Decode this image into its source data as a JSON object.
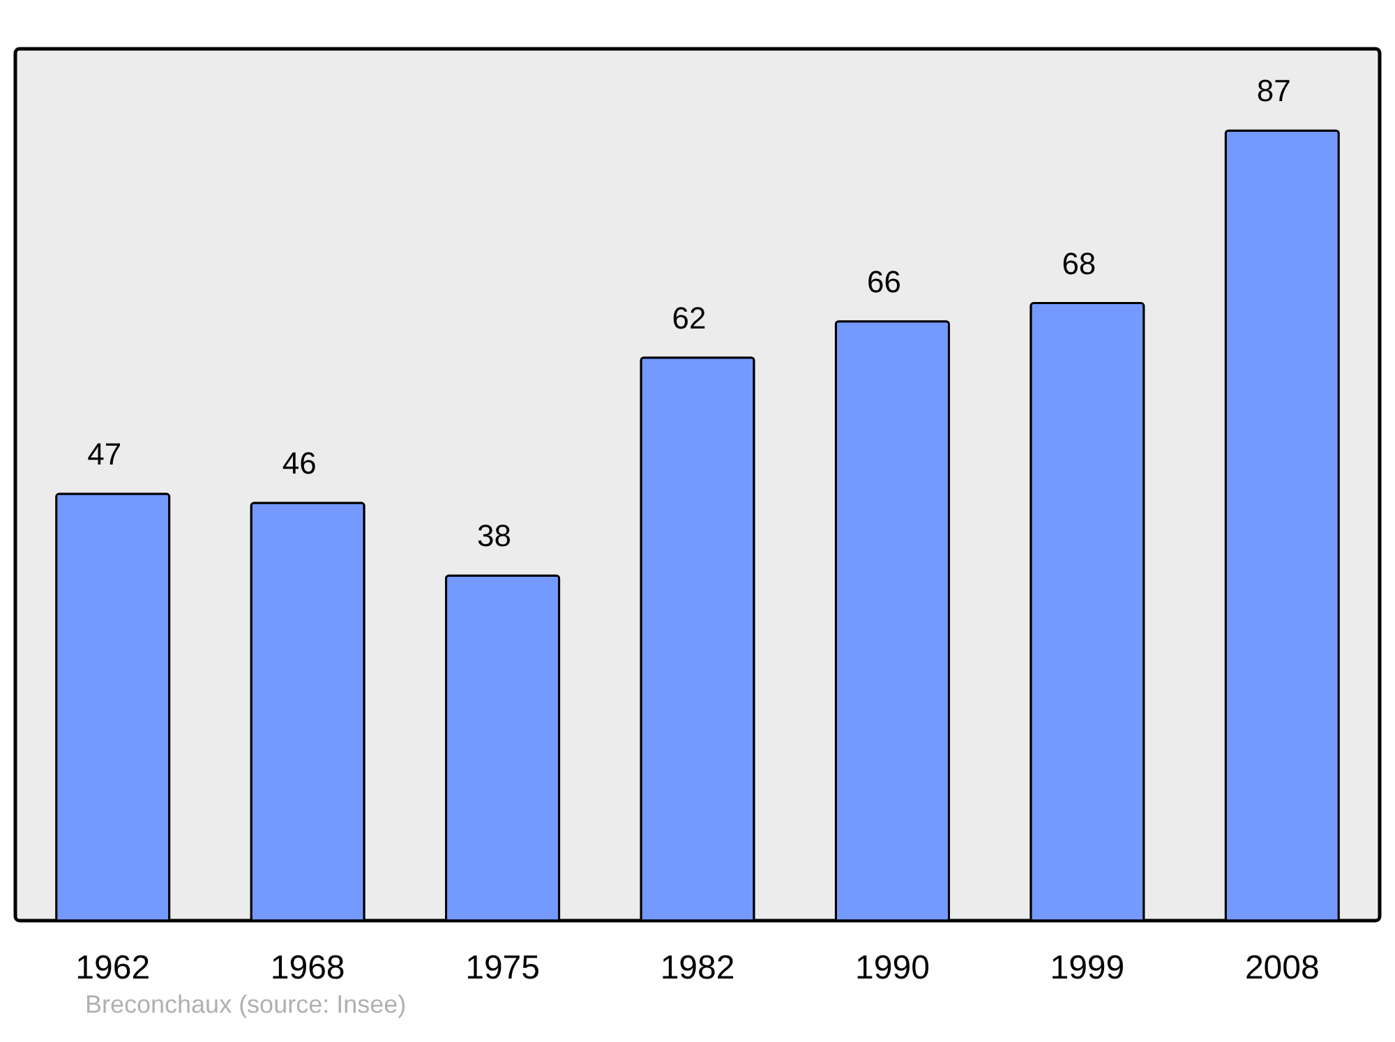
{
  "chart_data": {
    "type": "bar",
    "categories": [
      "1962",
      "1968",
      "1975",
      "1982",
      "1990",
      "1999",
      "2008"
    ],
    "values": [
      47,
      46,
      38,
      62,
      66,
      68,
      87
    ],
    "color": "#7499ff",
    "ylim": [
      0,
      96
    ],
    "tick_labels": "x",
    "data_labels": true,
    "grid": false,
    "annotations": [
      "Breconchaux    (source: Insee)"
    ]
  }
}
